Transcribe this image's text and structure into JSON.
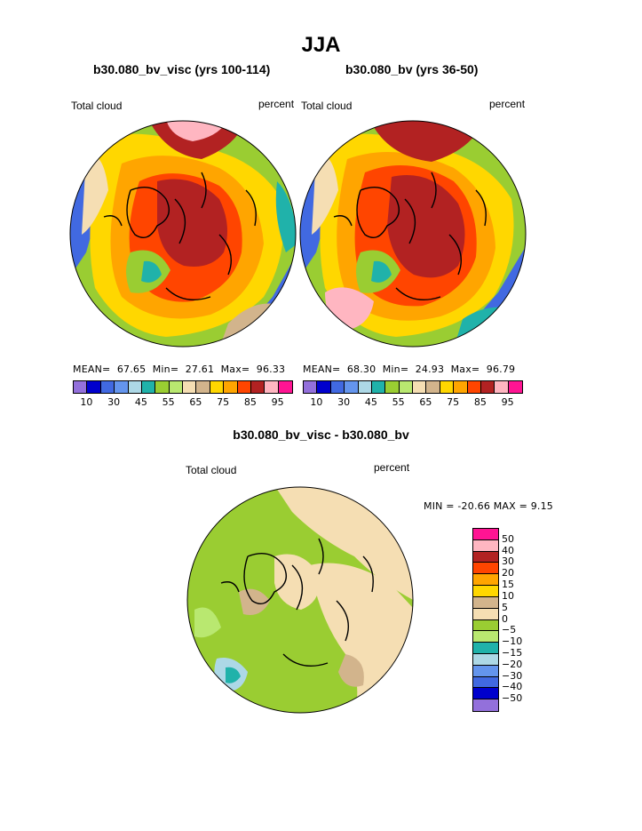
{
  "chart_data": [
    {
      "type": "heatmap",
      "panel": "top-left",
      "title": "b30.080_bv_visc (yrs 100-114)",
      "left_label": "Total cloud",
      "right_label": "percent",
      "projection": "north-polar-stereographic",
      "stats": {
        "mean_label": "MEAN=",
        "mean": "67.65",
        "min_label": "Min=",
        "min": "27.61",
        "max_label": "Max=",
        "max": "96.33"
      }
    },
    {
      "type": "heatmap",
      "panel": "top-right",
      "title": "b30.080_bv (yrs 36-50)",
      "left_label": "Total cloud",
      "right_label": "percent",
      "projection": "north-polar-stereographic",
      "stats": {
        "mean_label": "MEAN=",
        "mean": "68.30",
        "min_label": "Min=",
        "min": "24.93",
        "max_label": "Max=",
        "max": "96.79"
      }
    },
    {
      "type": "heatmap",
      "panel": "bottom",
      "title": "b30.080_bv_visc - b30.080_bv",
      "left_label": "Total cloud",
      "right_label": "percent",
      "projection": "north-polar-stereographic",
      "stats_text": "MIN = -20.66 MAX =   9.15",
      "min": -20.66,
      "max": 9.15
    }
  ],
  "figure": {
    "title": "JJA"
  },
  "colorbar_top": {
    "colors": [
      "#9370db",
      "#0000cd",
      "#4169e1",
      "#6495ed",
      "#add8e6",
      "#20b2aa",
      "#9acd32",
      "#b9e870",
      "#f5deb3",
      "#d2b48c",
      "#ffd700",
      "#ffa500",
      "#ff4500",
      "#b22222",
      "#ffb6c1",
      "#ff1493"
    ],
    "tick_labels": [
      "10",
      "30",
      "45",
      "55",
      "65",
      "75",
      "85",
      "95"
    ]
  },
  "colorbar_diff": {
    "colors": [
      "#ff1493",
      "#ffb6c1",
      "#b22222",
      "#ff4500",
      "#ffa500",
      "#ffd700",
      "#d2b48c",
      "#f5deb3",
      "#9acd32",
      "#b9e870",
      "#20b2aa",
      "#add8e6",
      "#6495ed",
      "#4169e1",
      "#0000cd",
      "#9370db"
    ],
    "tick_labels": [
      "50",
      "40",
      "30",
      "20",
      "15",
      "10",
      "5",
      "0",
      "−5",
      "−10",
      "−15",
      "−20",
      "−30",
      "−40",
      "−50"
    ]
  }
}
